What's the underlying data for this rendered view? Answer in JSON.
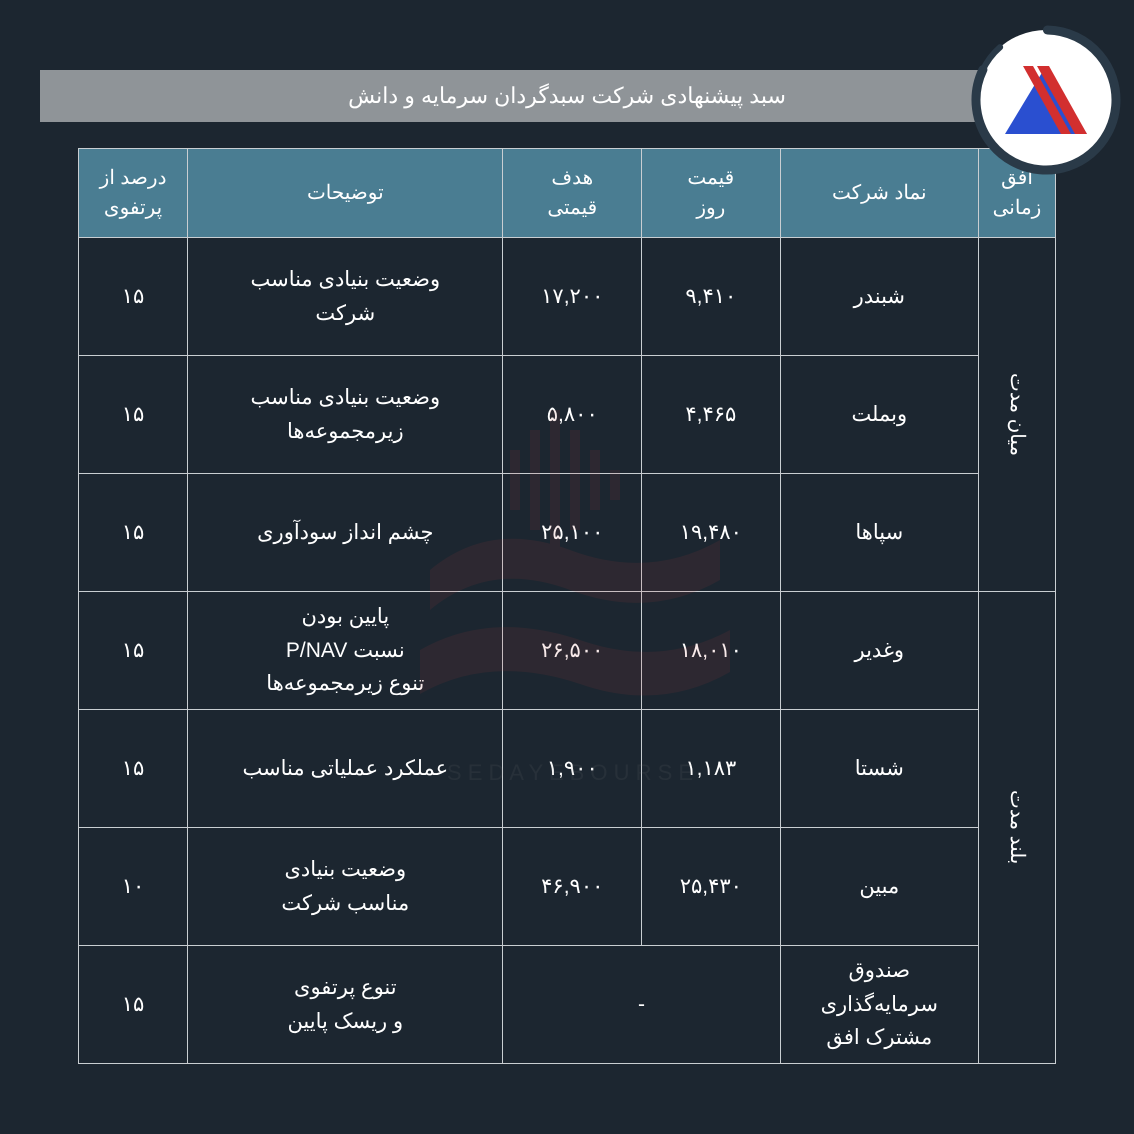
{
  "header": {
    "title": "سبد پیشنهادی شرکت سبدگردان سرمایه و دانش"
  },
  "logo": {
    "ring_color": "#2a3a48",
    "triangle_blue": "#2a4fd0",
    "stripes_red": "#d22f2f",
    "bg": "#ffffff"
  },
  "watermark": {
    "color": "#c23a3a"
  },
  "colors": {
    "page_bg": "#1c2630",
    "header_bar_bg": "#8f9498",
    "header_bar_fg": "#ffffff",
    "th_bg": "#4a7d92",
    "th_fg": "#ffffff",
    "cell_fg": "#ffffff",
    "border": "#c9ced2"
  },
  "columns": [
    {
      "key": "horizon",
      "label": "افق\nزمانی"
    },
    {
      "key": "symbol",
      "label": "نماد شرکت"
    },
    {
      "key": "price",
      "label": "قیمت\nروز"
    },
    {
      "key": "target",
      "label": "هدف\nقیمتی"
    },
    {
      "key": "desc",
      "label": "توضیحات"
    },
    {
      "key": "pct",
      "label": "درصد از\nپرتفوی"
    }
  ],
  "groups": [
    {
      "horizon": "میان مدت",
      "rows": [
        {
          "symbol": "شبندر",
          "price": "۹,۴۱۰",
          "target": "۱۷,۲۰۰",
          "desc": "وضعیت بنیادی مناسب\nشرکت",
          "pct": "۱۵"
        },
        {
          "symbol": "وبملت",
          "price": "۴,۴۶۵",
          "target": "۵,۸۰۰",
          "desc": "وضعیت بنیادی مناسب\nزیرمجموعه‌ها",
          "pct": "۱۵"
        },
        {
          "symbol": "سپاها",
          "price": "۱۹,۴۸۰",
          "target": "۲۵,۱۰۰",
          "desc": "چشم انداز سودآوری",
          "pct": "۱۵"
        }
      ]
    },
    {
      "horizon": "بلند مدت",
      "rows": [
        {
          "symbol": "وغدیر",
          "price": "۱۸,۰۱۰",
          "target": "۲۶,۵۰۰",
          "desc": "پایین بودن\nنسبت P/NAV\nتنوع زیرمجموعه‌ها",
          "pct": "۱۵"
        },
        {
          "symbol": "شستا",
          "price": "۱,۱۸۳",
          "target": "۱,۹۰۰",
          "desc": "عملکرد عملیاتی مناسب",
          "pct": "۱۵"
        },
        {
          "symbol": "مبین",
          "price": "۲۵,۴۳۰",
          "target": "۴۶,۹۰۰",
          "desc": "وضعیت بنیادی\nمناسب شرکت",
          "pct": "۱۰"
        },
        {
          "symbol": "صندوق\nسرمایه‌گذاری\nمشترک افق",
          "price_target_merged": "-",
          "desc": "تنوع پرتفوی\nو ریسک پایین",
          "pct": "۱۵"
        }
      ]
    }
  ]
}
